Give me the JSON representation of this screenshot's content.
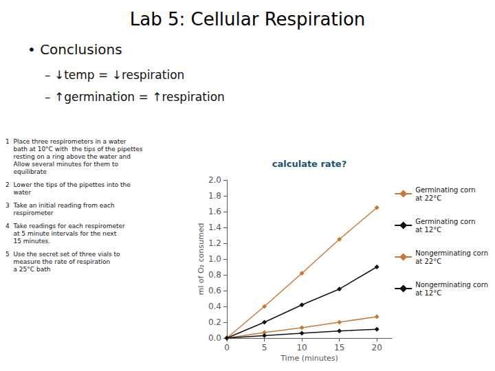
{
  "chart_data": {
    "type": "line",
    "title": "Lab 5: Cellular Respiration",
    "annotations": [
      "• Conclusions",
      "– ↓temp = ↓respiration",
      "– ↑germination = ↑respiration",
      "calculate rate?",
      "1  Place three respirometers in a water\n    bath at 10°C with  the tips of the pipettes\n    resting on a ring above the water and\n    Allow several minutes for them to\n    equilibrate",
      "2  Lower the tips of the pipettes into the\n    water",
      "3  Take an initial reading from each\n    respirometer",
      "4  Take readings for each respirometer\n    at 5 minute intervals for the next\n    15 minutes.",
      "5  Use the secret set of three vials to\n    measure the rate of respiration\n    a 25°C bath"
    ],
    "xlabel": "Time (minutes)",
    "ylabel": "ml of O₂ consumed",
    "x": [
      0,
      5,
      10,
      15,
      20
    ],
    "series": [
      {
        "name": "Germinating corn\nat 22°C",
        "color": "#c87832",
        "values": [
          0,
          0.4,
          0.82,
          1.25,
          1.65
        ]
      },
      {
        "name": "Germinating corn\nat 12°C",
        "color": "#111111",
        "values": [
          0,
          0.2,
          0.42,
          0.62,
          0.9
        ]
      },
      {
        "name": "Nongerminating corn\nat 22°C",
        "color": "#c87832",
        "values": [
          0,
          0.07,
          0.13,
          0.2,
          0.27
        ]
      },
      {
        "name": "Nongerminating corn\nat 12°C",
        "color": "#111111",
        "values": [
          0,
          0.03,
          0.06,
          0.09,
          0.11
        ]
      }
    ],
    "xlim": [
      0,
      22
    ],
    "ylim": [
      0,
      2.0
    ],
    "xticks": [
      0,
      5,
      10,
      15,
      20
    ],
    "yticks": [
      {
        "value": 0,
        "label": "0.0"
      },
      0.2,
      0.4,
      0.6,
      0.8,
      {
        "value": 1,
        "label": "1.0"
      },
      1.2,
      1.4,
      1.6,
      1.8,
      {
        "value": 2,
        "label": "2.0"
      }
    ],
    "grid": false,
    "legend": "right",
    "marker": "diamond"
  }
}
